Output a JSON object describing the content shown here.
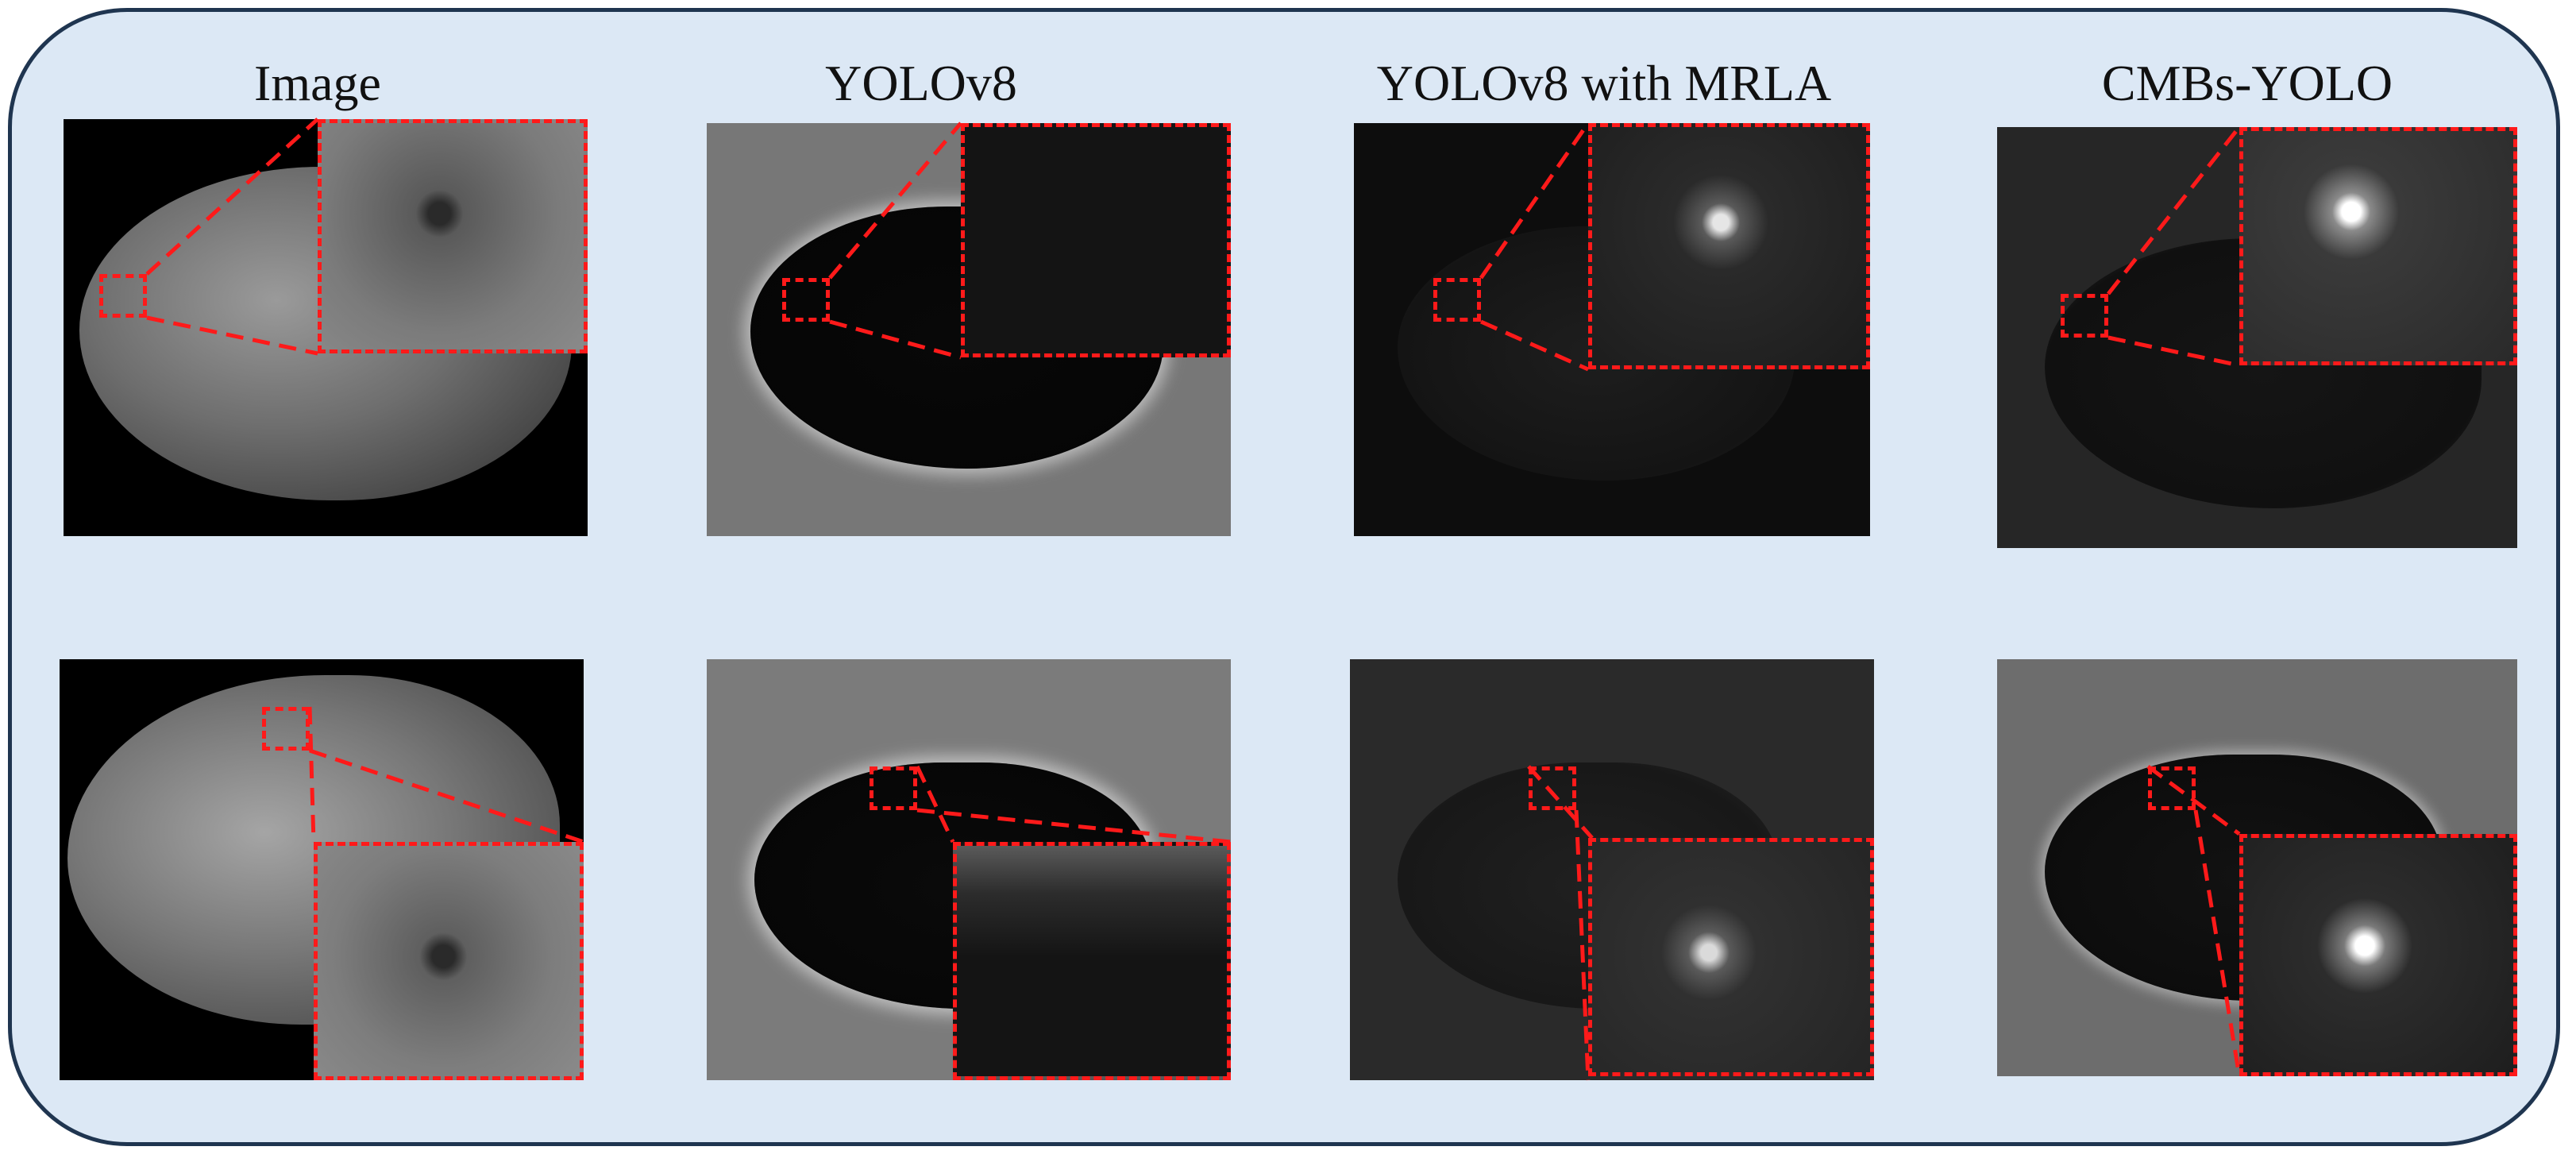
{
  "columns": [
    {
      "title": "Image"
    },
    {
      "title": "YOLOv8"
    },
    {
      "title": "YOLOv8 with MRLA"
    },
    {
      "title": "CMBs-YOLO"
    }
  ],
  "colors": {
    "frame_fill": "#dce8f5",
    "frame_border": "#1f3550",
    "highlight": "#ff1a1a"
  }
}
